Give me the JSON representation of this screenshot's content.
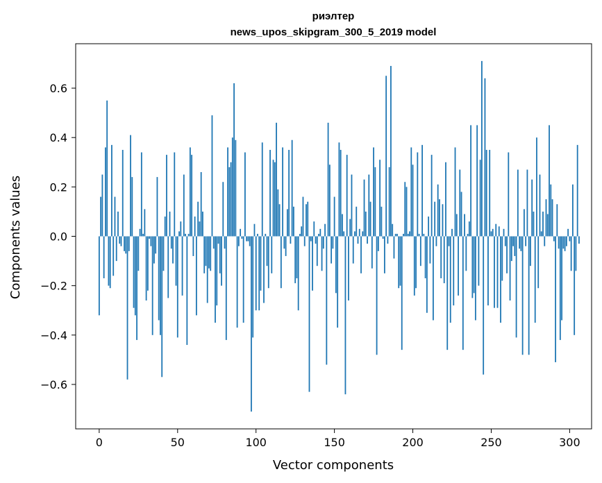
{
  "chart_data": {
    "type": "bar",
    "title": "риэлтер",
    "subtitle": "news_upos_skipgram_300_5_2019 model",
    "xlabel": "Vector components",
    "ylabel": "Components values",
    "xlim": [
      -15,
      314
    ],
    "ylim": [
      -0.78,
      0.78
    ],
    "xticks": [
      0,
      50,
      100,
      150,
      200,
      250,
      300
    ],
    "yticks": [
      -0.6,
      -0.4,
      -0.2,
      0.0,
      0.2,
      0.4,
      0.6
    ],
    "ytick_labels": [
      "−0.6",
      "−0.4",
      "−0.2",
      "0.0",
      "0.2",
      "0.4",
      "0.6"
    ],
    "bar_color": "#1f77b4",
    "grid": false,
    "values": [
      -0.32,
      0.16,
      0.25,
      -0.17,
      0.36,
      0.55,
      -0.2,
      -0.21,
      0.37,
      -0.16,
      0.16,
      -0.1,
      0.1,
      -0.03,
      -0.04,
      0.35,
      -0.06,
      -0.07,
      -0.58,
      -0.06,
      0.41,
      0.24,
      -0.29,
      -0.32,
      -0.42,
      -0.14,
      0.03,
      0.34,
      0.01,
      0.11,
      -0.26,
      -0.22,
      -0.01,
      -0.04,
      -0.4,
      -0.11,
      -0.07,
      0.24,
      -0.34,
      -0.4,
      -0.57,
      -0.14,
      0.08,
      0.33,
      -0.25,
      0.1,
      -0.05,
      -0.11,
      0.34,
      -0.2,
      -0.41,
      0.02,
      0.06,
      -0.24,
      0.25,
      0.01,
      -0.44,
      0.01,
      0.36,
      0.33,
      -0.08,
      0.08,
      -0.32,
      0.14,
      0.06,
      0.26,
      0.1,
      -0.15,
      -0.12,
      -0.27,
      -0.13,
      -0.14,
      0.49,
      -0.05,
      -0.35,
      -0.28,
      -0.03,
      -0.15,
      -0.2,
      0.22,
      -0.05,
      -0.42,
      0.36,
      0.28,
      0.3,
      0.4,
      0.62,
      0.39,
      -0.37,
      -0.04,
      0.03,
      -0.01,
      -0.35,
      0.34,
      -0.02,
      -0.02,
      -0.04,
      -0.71,
      -0.41,
      0.05,
      -0.3,
      0.01,
      -0.3,
      -0.22,
      0.38,
      -0.27,
      0.01,
      -0.12,
      -0.21,
      0.35,
      -0.15,
      0.31,
      0.3,
      0.46,
      0.19,
      0.13,
      -0.21,
      0.36,
      -0.05,
      -0.08,
      0.11,
      0.35,
      -0.03,
      0.39,
      0.12,
      -0.19,
      -0.17,
      -0.3,
      0.01,
      0.04,
      0.16,
      -0.04,
      0.13,
      0.14,
      -0.63,
      -0.02,
      -0.22,
      0.06,
      -0.03,
      -0.12,
      0.01,
      0.03,
      -0.14,
      -0.05,
      0.05,
      -0.52,
      0.46,
      0.29,
      -0.11,
      -0.05,
      0.16,
      -0.23,
      -0.37,
      0.38,
      0.35,
      0.09,
      0.02,
      -0.64,
      0.33,
      -0.26,
      0.07,
      0.25,
      -0.11,
      0.02,
      0.12,
      -0.03,
      0.03,
      -0.15,
      0.02,
      0.23,
      0.1,
      -0.03,
      0.25,
      0.14,
      -0.13,
      0.36,
      0.28,
      -0.48,
      -0.06,
      0.31,
      0.12,
      -0.01,
      -0.15,
      0.65,
      -0.03,
      0.28,
      0.69,
      0.05,
      -0.09,
      0.01,
      0.01,
      -0.21,
      -0.2,
      -0.46,
      0.01,
      0.22,
      0.2,
      0.01,
      0.02,
      0.36,
      0.29,
      -0.24,
      -0.21,
      0.34,
      0.01,
      -0.12,
      0.37,
      0.01,
      -0.17,
      -0.31,
      0.08,
      -0.11,
      0.33,
      -0.34,
      0.14,
      -0.04,
      0.21,
      0.15,
      -0.17,
      0.13,
      -0.19,
      0.3,
      -0.46,
      -0.04,
      -0.35,
      0.03,
      -0.28,
      0.36,
      0.09,
      -0.24,
      0.27,
      0.18,
      -0.46,
      0.09,
      -0.14,
      0.01,
      0.06,
      0.45,
      -0.25,
      -0.23,
      -0.34,
      0.45,
      -0.2,
      0.31,
      0.71,
      -0.56,
      0.64,
      0.35,
      -0.28,
      0.35,
      0.02,
      0.03,
      -0.29,
      0.05,
      -0.29,
      0.04,
      -0.35,
      -0.18,
      0.03,
      -0.04,
      -0.15,
      0.34,
      -0.26,
      -0.1,
      -0.04,
      -0.08,
      -0.41,
      0.27,
      -0.05,
      -0.06,
      -0.48,
      0.11,
      -0.04,
      0.27,
      -0.48,
      -0.12,
      0.23,
      0.1,
      -0.35,
      0.4,
      -0.21,
      0.25,
      0.02,
      0.1,
      -0.04,
      0.15,
      0.09,
      0.45,
      0.21,
      0.15,
      -0.02,
      -0.51,
      0.13,
      -0.05,
      -0.42,
      -0.34,
      -0.05,
      -0.06,
      -0.04,
      0.03,
      -0.02,
      -0.14,
      0.21,
      -0.4,
      -0.14,
      0.37,
      -0.03
    ]
  }
}
